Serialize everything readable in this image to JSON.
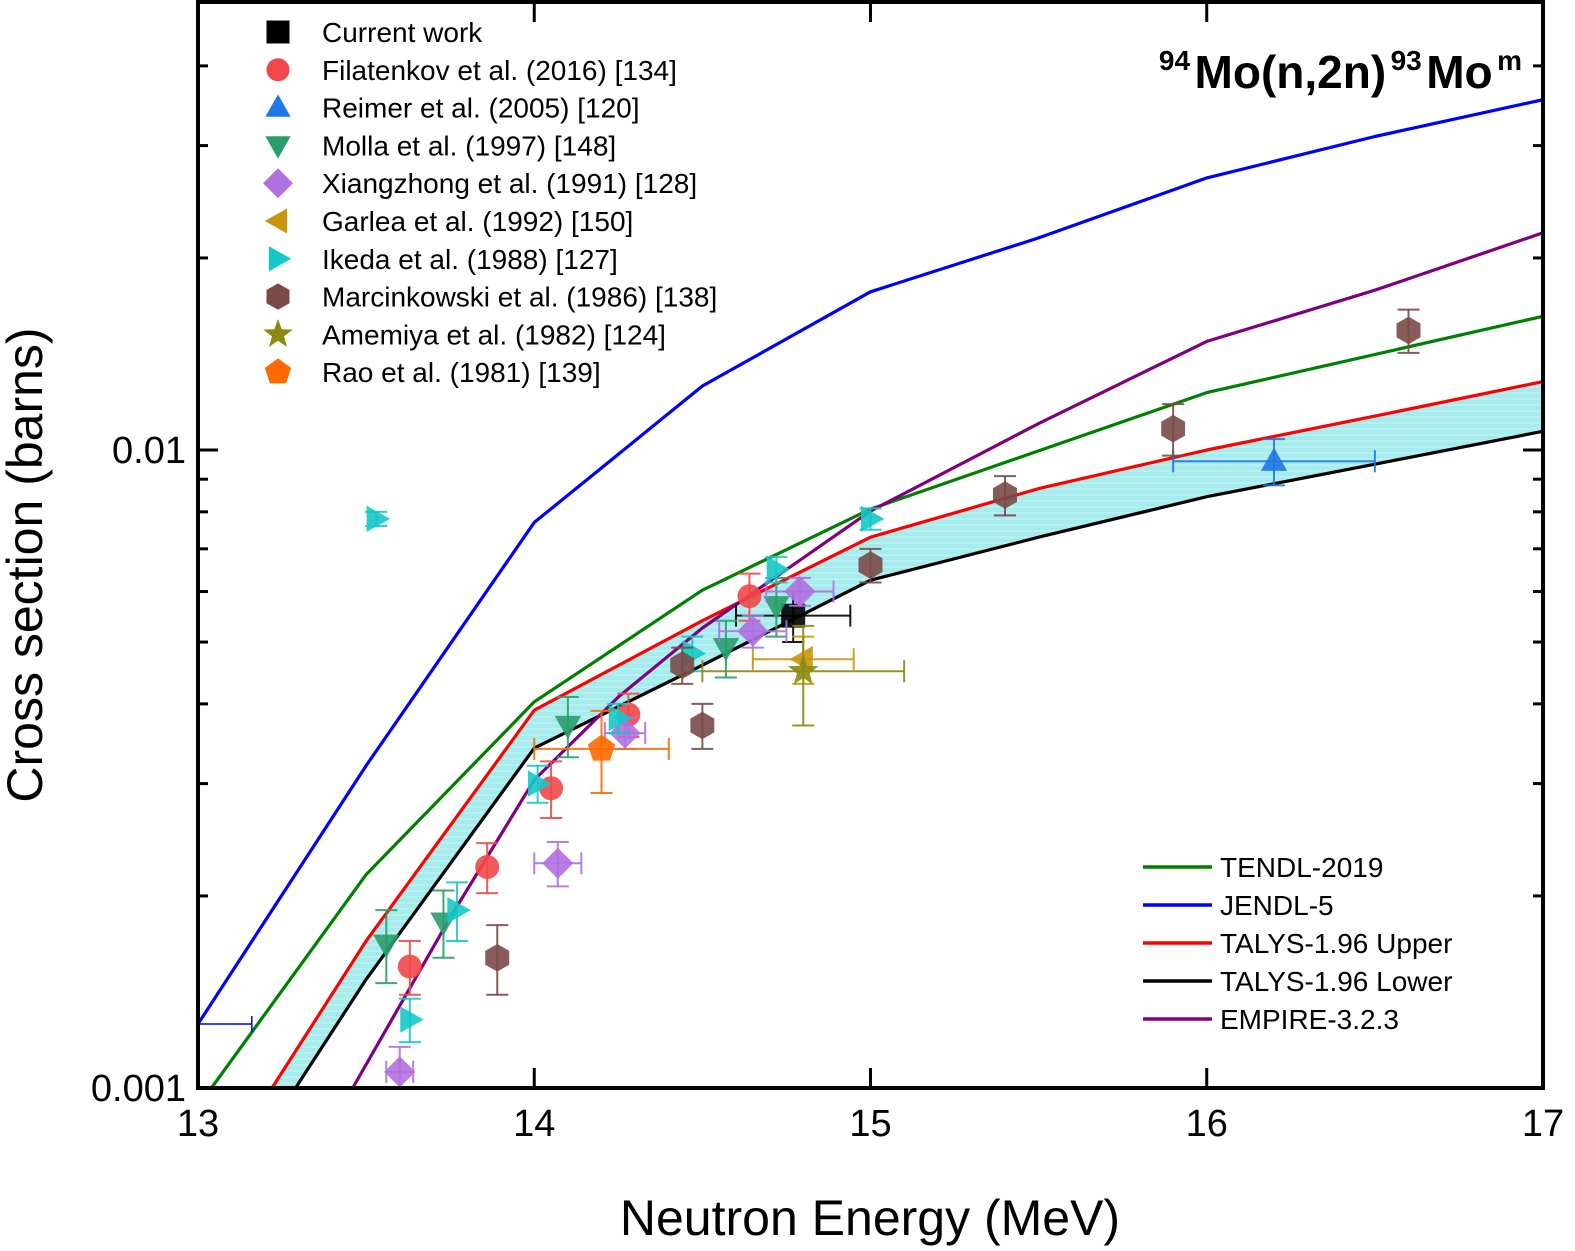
{
  "chart_data": {
    "type": "scatter",
    "title": "",
    "reaction_label": {
      "target_mass": "94",
      "target": "Mo(n,2n)",
      "product_mass": "93",
      "product": "Mo",
      "product_state": "m"
    },
    "xlabel": "Neutron Energy (MeV)",
    "ylabel": "Cross section (barns)",
    "xlim": [
      13,
      17
    ],
    "ylim": [
      0.001,
      0.045
    ],
    "yscale": "log",
    "x_ticks": [
      13,
      14,
      15,
      16,
      17
    ],
    "x_tick_labels": [
      "13",
      "14",
      "15",
      "16",
      "17"
    ],
    "y_ticks": [
      0.001,
      0.01
    ],
    "y_tick_labels": [
      "0.001",
      "0.01"
    ],
    "y_minor_ticks": [
      0.002,
      0.003,
      0.004,
      0.005,
      0.006,
      0.007,
      0.008,
      0.009,
      0.02,
      0.03,
      0.04
    ],
    "grid": false,
    "legend_markers_position": "top-left",
    "legend_lines_position": "bottom-right",
    "band": {
      "name": "TALYS-1.96 uncertainty band",
      "upper": "TALYS-1.96 Upper",
      "lower": "TALYS-1.96 Lower",
      "color": "#a6ecec"
    },
    "lines": [
      {
        "name": "TENDL-2019",
        "color": "#008000",
        "x": [
          13.04,
          13.5,
          14.0,
          14.5,
          15.0,
          16.0,
          17.0
        ],
        "y": [
          0.001,
          0.00216,
          0.00403,
          0.00603,
          0.00808,
          0.0123,
          0.0162
        ]
      },
      {
        "name": "JENDL-5",
        "color": "#0000ff",
        "x": [
          13.0,
          13.5,
          14.0,
          14.5,
          15.0,
          15.5,
          16.0,
          16.5,
          17.0
        ],
        "y": [
          0.00126,
          0.0032,
          0.0077,
          0.0126,
          0.0177,
          0.0215,
          0.0267,
          0.031,
          0.0354
        ]
      },
      {
        "name": "TALYS-1.96 Upper",
        "color": "#ff0000",
        "x": [
          13.22,
          13.5,
          14.0,
          14.5,
          15.0,
          15.5,
          16.0,
          16.5,
          17.0
        ],
        "y": [
          0.001,
          0.0017,
          0.00391,
          0.0054,
          0.0073,
          0.0087,
          0.01,
          0.0113,
          0.0128
        ]
      },
      {
        "name": "TALYS-1.96 Lower",
        "color": "#000000",
        "x": [
          13.29,
          13.5,
          14.0,
          14.5,
          15.0,
          15.5,
          16.0,
          16.5,
          17.0
        ],
        "y": [
          0.001,
          0.00148,
          0.00341,
          0.0046,
          0.00625,
          0.0073,
          0.00845,
          0.0095,
          0.0107
        ]
      },
      {
        "name": "EMPIRE-3.2.3",
        "color": "#800080",
        "x": [
          13.46,
          13.75,
          14.0,
          14.25,
          14.5,
          15.0,
          15.5,
          16.0,
          16.5,
          17.0
        ],
        "y": [
          0.001,
          0.00185,
          0.00304,
          0.0041,
          0.00526,
          0.00802,
          0.011,
          0.0148,
          0.0178,
          0.0219
        ]
      }
    ],
    "series": [
      {
        "name": "Current work",
        "marker": "square",
        "color": "#000000",
        "points": [
          {
            "x": 14.77,
            "y": 0.0055,
            "yerr": 0.0005,
            "xerr": 0.17
          }
        ]
      },
      {
        "name": "Filatenkov et al. (2016) [134]",
        "marker": "circle",
        "color": "#f04848",
        "points": [
          {
            "x": 13.63,
            "y": 0.00155,
            "yerr": 0.00015,
            "xerr": 0
          },
          {
            "x": 13.86,
            "y": 0.00222,
            "yerr": 0.0002,
            "xerr": 0
          },
          {
            "x": 14.05,
            "y": 0.00295,
            "yerr": 0.0003,
            "xerr": 0
          },
          {
            "x": 14.28,
            "y": 0.00385,
            "yerr": 0.0003,
            "xerr": 0
          },
          {
            "x": 14.64,
            "y": 0.0059,
            "yerr": 0.0005,
            "xerr": 0
          }
        ]
      },
      {
        "name": "Reimer et al. (2005) [120]",
        "marker": "triangle-up",
        "color": "#1e78e6",
        "points": [
          {
            "x": 16.2,
            "y": 0.0096,
            "yerr": 0.0008,
            "xerr": 0.3
          }
        ]
      },
      {
        "name": "Molla et al. (1997) [148]",
        "marker": "triangle-down",
        "color": "#2a9d6a",
        "points": [
          {
            "x": 13.56,
            "y": 0.00168,
            "yerr": 0.00022,
            "xerr": 0
          },
          {
            "x": 13.73,
            "y": 0.00182,
            "yerr": 0.00022,
            "xerr": 0
          },
          {
            "x": 14.1,
            "y": 0.0037,
            "yerr": 0.0004,
            "xerr": 0
          },
          {
            "x": 14.57,
            "y": 0.0049,
            "yerr": 0.0005,
            "xerr": 0
          },
          {
            "x": 14.72,
            "y": 0.0057,
            "yerr": 0.0006,
            "xerr": 0
          }
        ]
      },
      {
        "name": "Xiangzhong et al. (1991) [128]",
        "marker": "diamond",
        "color": "#b070e0",
        "points": [
          {
            "x": 13.6,
            "y": 0.00106,
            "yerr": 0.0001,
            "xerr": 0.04
          },
          {
            "x": 14.07,
            "y": 0.00225,
            "yerr": 0.00018,
            "xerr": 0.07
          },
          {
            "x": 14.27,
            "y": 0.0036,
            "yerr": 0.0002,
            "xerr": 0.06
          },
          {
            "x": 14.65,
            "y": 0.0052,
            "yerr": 0.0003,
            "xerr": 0.1
          },
          {
            "x": 14.79,
            "y": 0.006,
            "yerr": 0.0003,
            "xerr": 0.1
          }
        ]
      },
      {
        "name": "Garlea et al. (1992) [150]",
        "marker": "triangle-left",
        "color": "#c8960a",
        "points": [
          {
            "x": 14.8,
            "y": 0.0047,
            "yerr": 0.0004,
            "xerr": 0.15
          }
        ]
      },
      {
        "name": "Ikeda et al. (1988) [127]",
        "marker": "triangle-right",
        "color": "#14c8c8",
        "points": [
          {
            "x": 13.53,
            "y": 0.0078,
            "yerr": 0.0002,
            "xerr": 0
          },
          {
            "x": 13.63,
            "y": 0.00128,
            "yerr": 0.0001,
            "xerr": 0
          },
          {
            "x": 13.77,
            "y": 0.0019,
            "yerr": 0.0002,
            "xerr": 0
          },
          {
            "x": 14.01,
            "y": 0.003,
            "yerr": 0.0002,
            "xerr": 0
          },
          {
            "x": 14.25,
            "y": 0.0038,
            "yerr": 0.0002,
            "xerr": 0
          },
          {
            "x": 14.47,
            "y": 0.0048,
            "yerr": 0.0003,
            "xerr": 0
          },
          {
            "x": 14.72,
            "y": 0.0065,
            "yerr": 0.0003,
            "xerr": 0
          },
          {
            "x": 15.0,
            "y": 0.0078,
            "yerr": 0.0003,
            "xerr": 0
          }
        ]
      },
      {
        "name": "Marcinkowski et al. (1986) [138]",
        "marker": "hexagon",
        "color": "#7a4a48",
        "points": [
          {
            "x": 13.89,
            "y": 0.0016,
            "yerr": 0.0002,
            "xerr": 0
          },
          {
            "x": 14.44,
            "y": 0.0046,
            "yerr": 0.0003,
            "xerr": 0
          },
          {
            "x": 14.5,
            "y": 0.0037,
            "yerr": 0.0003,
            "xerr": 0
          },
          {
            "x": 15.0,
            "y": 0.0066,
            "yerr": 0.0004,
            "xerr": 0
          },
          {
            "x": 15.4,
            "y": 0.0085,
            "yerr": 0.0006,
            "xerr": 0
          },
          {
            "x": 15.9,
            "y": 0.0108,
            "yerr": 0.001,
            "xerr": 0
          },
          {
            "x": 16.6,
            "y": 0.0154,
            "yerr": 0.0012,
            "xerr": 0
          }
        ]
      },
      {
        "name": "Amemiya et al. (1982) [124]",
        "marker": "star",
        "color": "#8a8a10",
        "points": [
          {
            "x": 14.8,
            "y": 0.0045,
            "yerr": 0.0008,
            "xerr": 0.3
          }
        ]
      },
      {
        "name": "Rao et al. (1981) [139]",
        "marker": "pentagon",
        "color": "#ff6a00",
        "points": [
          {
            "x": 14.2,
            "y": 0.0034,
            "yerr": 0.0005,
            "xerr": 0.2
          }
        ]
      }
    ]
  }
}
